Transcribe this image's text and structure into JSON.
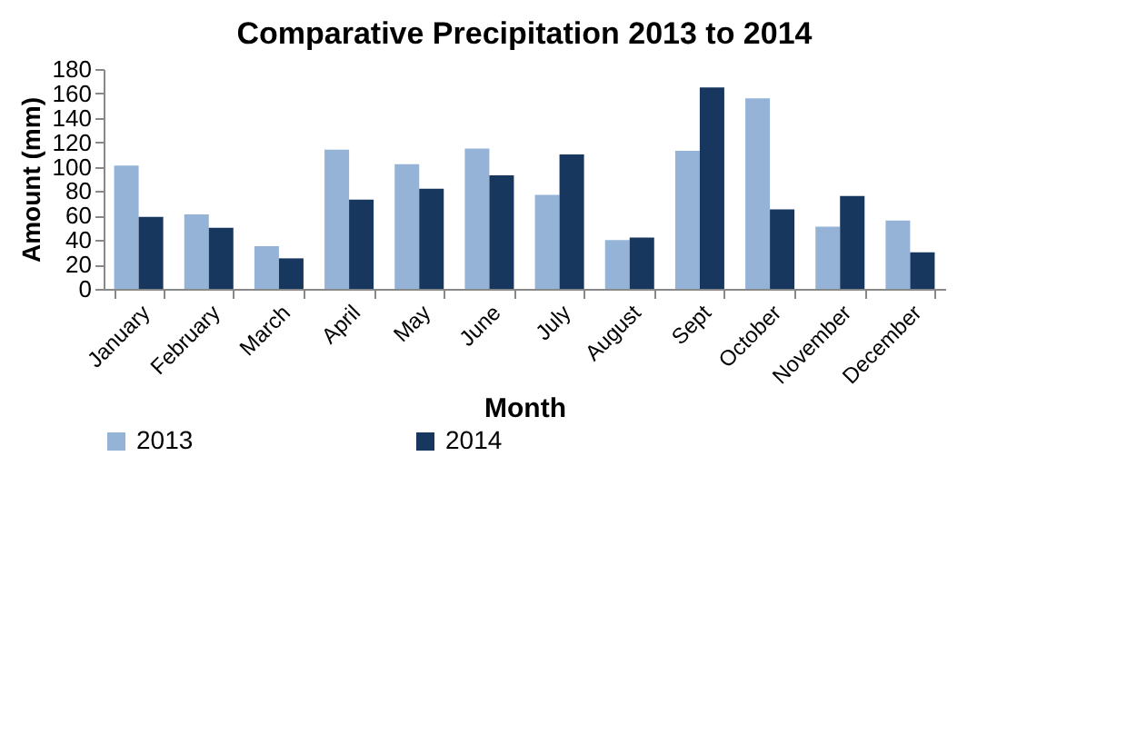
{
  "chart_data": {
    "type": "bar",
    "title": "Comparative Precipitation 2013 to 2014",
    "xlabel": "Month",
    "ylabel": "Amount (mm)",
    "categories": [
      "January",
      "February",
      "March",
      "April",
      "May",
      "June",
      "July",
      "August",
      "Sept",
      "October",
      "November",
      "December"
    ],
    "series": [
      {
        "name": "2013",
        "color": "#95b3d7",
        "values": [
          101,
          61,
          35,
          114,
          102,
          115,
          77,
          40,
          113,
          156,
          51,
          56
        ]
      },
      {
        "name": "2014",
        "color": "#17375e",
        "values": [
          59,
          50,
          25,
          73,
          82,
          93,
          110,
          42,
          165,
          65,
          76,
          30
        ]
      }
    ],
    "ylim": [
      0,
      180
    ],
    "yticks": [
      0,
      20,
      40,
      60,
      80,
      100,
      120,
      140,
      160,
      180
    ],
    "grid": false,
    "legend": "bottom"
  }
}
